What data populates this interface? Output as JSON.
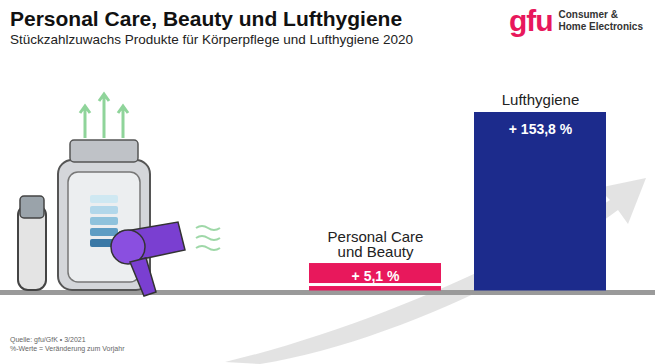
{
  "chart_data": {
    "type": "bar",
    "title": "Personal Care, Beauty und Lufthygiene",
    "subtitle": "Stückzahlzuwachs Produkte für Körperpflege und Lufthygiene 2020",
    "categories": [
      "Personal Care und Beauty",
      "Lufthygiene"
    ],
    "values": [
      5.1,
      153.8
    ],
    "value_labels": [
      "+ 5,1 %",
      "+ 153,8 %"
    ],
    "colors": [
      "#e8185c",
      "#1c2b8c"
    ],
    "ylim": [
      0,
      153.8
    ],
    "data_labels": true,
    "tick_labels": false,
    "source": "Quelle: gfu/GfK • 3/2021",
    "note": "%-Werte = Veränderung zum Vorjahr",
    "logo": {
      "name": "gfu",
      "text": [
        "Consumer &",
        "Home Electronics"
      ]
    }
  }
}
